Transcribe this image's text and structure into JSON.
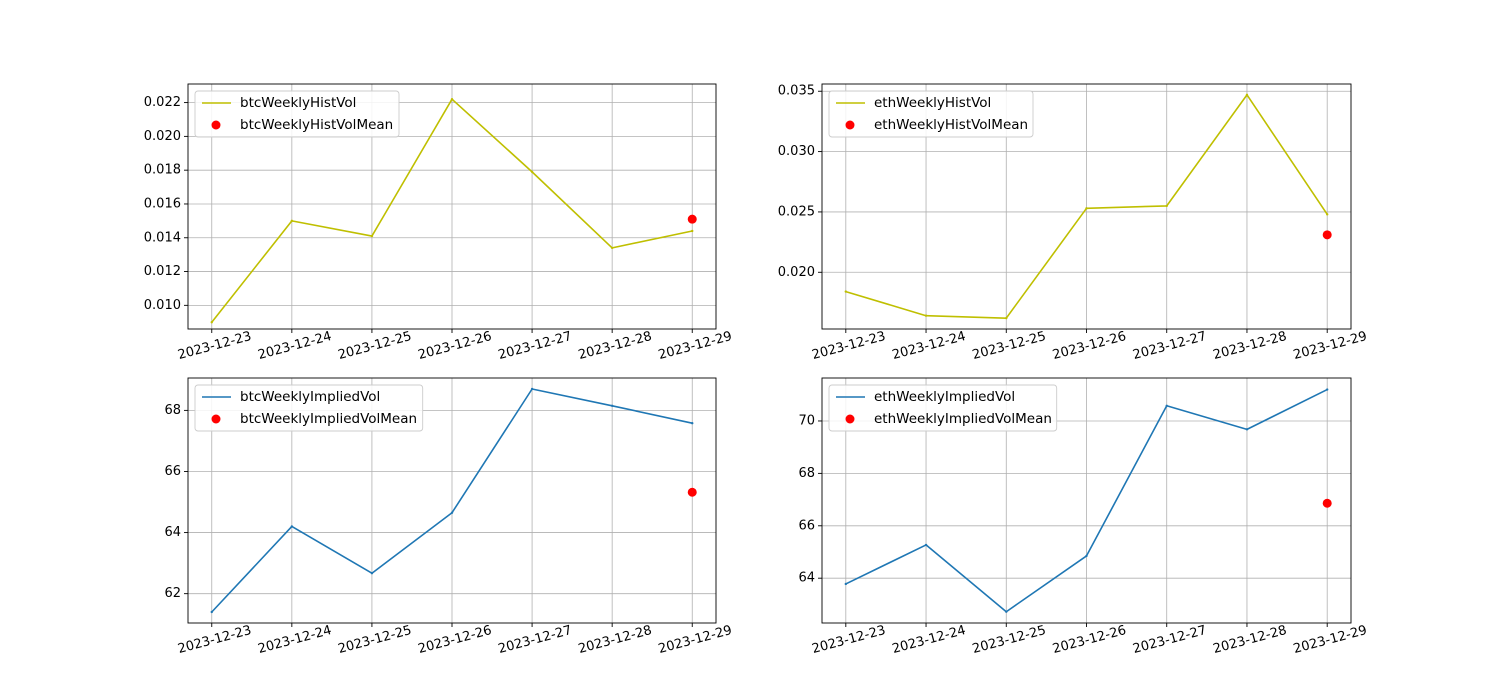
{
  "chart_data": [
    {
      "type": "line",
      "x": [
        "2023-12-23",
        "2023-12-24",
        "2023-12-25",
        "2023-12-26",
        "2023-12-27",
        "2023-12-28",
        "2023-12-29"
      ],
      "xticks": [
        "2023-12-23",
        "2023-12-24",
        "2023-12-25",
        "2023-12-26",
        "2023-12-27",
        "2023-12-28",
        "2023-12-29"
      ],
      "series": [
        {
          "name": "btcWeeklyHistVol",
          "kind": "line",
          "color": "#bfbf00",
          "values": [
            0.009,
            0.015,
            0.0141,
            0.0222,
            0.0179,
            0.0134,
            0.0144
          ]
        }
      ],
      "scatter": {
        "name": "btcWeeklyHistVolMean",
        "color": "#ff0000",
        "x": "2023-12-29",
        "y": 0.0151
      },
      "ylim": [
        0.0086,
        0.0231
      ],
      "yticks": [
        0.01,
        0.012,
        0.014,
        0.016,
        0.018,
        0.02,
        0.022
      ],
      "ytick_labels": [
        "0.010",
        "0.012",
        "0.014",
        "0.016",
        "0.018",
        "0.020",
        "0.022"
      ],
      "grid": true,
      "legend_position": "upper-left",
      "title": "",
      "xlabel": "",
      "ylabel": ""
    },
    {
      "type": "line",
      "x": [
        "2023-12-23",
        "2023-12-24",
        "2023-12-25",
        "2023-12-26",
        "2023-12-27",
        "2023-12-28",
        "2023-12-29"
      ],
      "xticks": [
        "2023-12-23",
        "2023-12-24",
        "2023-12-25",
        "2023-12-26",
        "2023-12-27",
        "2023-12-28",
        "2023-12-29"
      ],
      "series": [
        {
          "name": "ethWeeklyHistVol",
          "kind": "line",
          "color": "#bfbf00",
          "values": [
            0.0184,
            0.0164,
            0.0162,
            0.0253,
            0.0255,
            0.0347,
            0.0248
          ]
        }
      ],
      "scatter": {
        "name": "ethWeeklyHistVolMean",
        "color": "#ff0000",
        "x": "2023-12-29",
        "y": 0.0231
      },
      "ylim": [
        0.0153,
        0.0356
      ],
      "yticks": [
        0.02,
        0.025,
        0.03,
        0.035
      ],
      "ytick_labels": [
        "0.020",
        "0.025",
        "0.030",
        "0.035"
      ],
      "grid": true,
      "legend_position": "upper-left",
      "title": "",
      "xlabel": "",
      "ylabel": ""
    },
    {
      "type": "line",
      "x": [
        "2023-12-23",
        "2023-12-24",
        "2023-12-25",
        "2023-12-26",
        "2023-12-27",
        "2023-12-28",
        "2023-12-29"
      ],
      "xticks": [
        "2023-12-23",
        "2023-12-24",
        "2023-12-25",
        "2023-12-26",
        "2023-12-27",
        "2023-12-28",
        "2023-12-29"
      ],
      "series": [
        {
          "name": "btcWeeklyImpliedVol",
          "kind": "line",
          "color": "#1f77b4",
          "values": [
            61.4,
            64.2,
            62.67,
            64.65,
            68.7,
            68.15,
            67.58
          ]
        }
      ],
      "scatter": {
        "name": "btcWeeklyImpliedVolMean",
        "color": "#ff0000",
        "x": "2023-12-29",
        "y": 65.32
      },
      "ylim": [
        61.04,
        69.06
      ],
      "yticks": [
        62,
        64,
        66,
        68
      ],
      "ytick_labels": [
        "62",
        "64",
        "66",
        "68"
      ],
      "grid": true,
      "legend_position": "upper-left",
      "title": "",
      "xlabel": "",
      "ylabel": ""
    },
    {
      "type": "line",
      "x": [
        "2023-12-23",
        "2023-12-24",
        "2023-12-25",
        "2023-12-26",
        "2023-12-27",
        "2023-12-28",
        "2023-12-29"
      ],
      "xticks": [
        "2023-12-23",
        "2023-12-24",
        "2023-12-25",
        "2023-12-26",
        "2023-12-27",
        "2023-12-28",
        "2023-12-29"
      ],
      "series": [
        {
          "name": "ethWeeklyImpliedVol",
          "kind": "line",
          "color": "#1f77b4",
          "values": [
            63.78,
            65.27,
            62.72,
            64.85,
            70.58,
            69.68,
            71.2
          ]
        }
      ],
      "scatter": {
        "name": "ethWeeklyImpliedVolMean",
        "color": "#ff0000",
        "x": "2023-12-29",
        "y": 66.86
      },
      "ylim": [
        62.29,
        71.64
      ],
      "yticks": [
        64,
        66,
        68,
        70
      ],
      "ytick_labels": [
        "64",
        "66",
        "68",
        "70"
      ],
      "grid": true,
      "legend_position": "upper-left",
      "title": "",
      "xlabel": "",
      "ylabel": ""
    }
  ]
}
